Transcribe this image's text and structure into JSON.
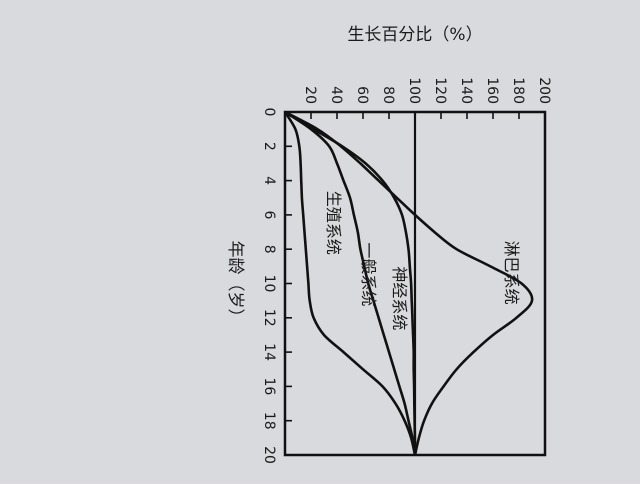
{
  "chart_data": {
    "type": "line",
    "ylabel": "生长百分比（%）",
    "xlabel": "年龄（岁）",
    "x_ticks": [
      "0",
      "2",
      "4",
      "6",
      "8",
      "10",
      "12",
      "14",
      "16",
      "18",
      "20"
    ],
    "y_ticks": [
      "20",
      "40",
      "60",
      "80",
      "100",
      "120",
      "140",
      "160",
      "180",
      "200"
    ],
    "xlim": [
      0,
      20
    ],
    "ylim": [
      0,
      200
    ],
    "reference_line": 100,
    "series": [
      {
        "name": "淋巴系统",
        "x": [
          0,
          1,
          2,
          3,
          4,
          5,
          6,
          7,
          8,
          9,
          10,
          11,
          12,
          13,
          14,
          15,
          16,
          17,
          18,
          19,
          20
        ],
        "y": [
          0,
          25,
          43,
          58,
          72,
          86,
          100,
          115,
          132,
          158,
          182,
          190,
          178,
          160,
          145,
          132,
          122,
          113,
          107,
          103,
          100
        ]
      },
      {
        "name": "神经系统",
        "x": [
          0,
          1,
          2,
          3,
          4,
          5,
          6,
          7,
          8,
          9,
          10,
          11,
          12,
          13,
          14,
          15,
          16,
          17,
          18,
          19,
          20
        ],
        "y": [
          0,
          22,
          44,
          62,
          75,
          84,
          90,
          93,
          95,
          96,
          97,
          97.5,
          98,
          98.5,
          99,
          99,
          99.3,
          99.5,
          99.7,
          99.9,
          100
        ]
      },
      {
        "name": "一般系统",
        "x": [
          0,
          1,
          2,
          3,
          4,
          5,
          6,
          7,
          8,
          9,
          10,
          11,
          12,
          13,
          14,
          15,
          16,
          17,
          18,
          19,
          20
        ],
        "y": [
          0,
          20,
          34,
          40,
          45,
          50,
          53,
          56,
          58,
          61,
          64,
          68,
          72,
          76,
          80,
          84,
          88,
          92,
          95,
          98,
          100
        ]
      },
      {
        "name": "生殖系统",
        "x": [
          0,
          1,
          2,
          3,
          4,
          5,
          6,
          7,
          8,
          9,
          10,
          11,
          12,
          13,
          14,
          15,
          16,
          17,
          18,
          19,
          20
        ],
        "y": [
          0,
          8,
          11,
          12,
          12.5,
          13,
          14,
          15,
          16,
          17,
          18,
          19,
          22,
          30,
          45,
          60,
          75,
          85,
          92,
          97,
          100
        ]
      }
    ]
  }
}
